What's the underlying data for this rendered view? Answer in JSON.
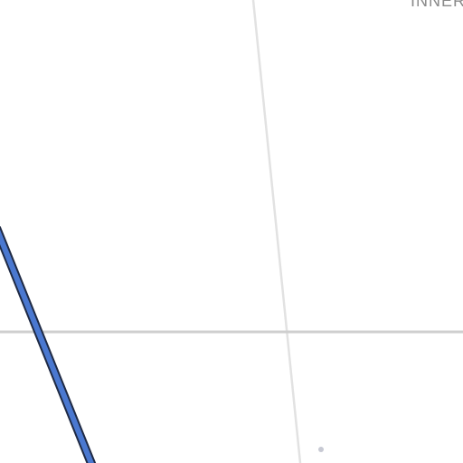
{
  "map": {
    "area_label": "INNER",
    "colors": {
      "background": "#ffffff",
      "minor_road": "#e2e2e2",
      "street": "#cfcfcf",
      "highway_fill": "#4a78d0",
      "highway_casing": "#1f2a44",
      "poi_dot": "#c7c9d3",
      "label": "#8a8a8a"
    }
  }
}
